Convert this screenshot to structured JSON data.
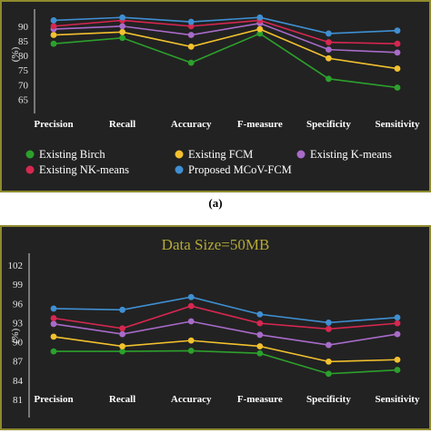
{
  "caption_a": "(a)",
  "chart_data": [
    {
      "type": "line",
      "title": "",
      "xlabel": "",
      "ylabel": "(%)",
      "ylim": [
        62,
        94
      ],
      "yticks": [
        65,
        70,
        75,
        80,
        85,
        90
      ],
      "categories": [
        "Precision",
        "Recall",
        "Accuracy",
        "F-measure",
        "Specificity",
        "Sensitivity"
      ],
      "series": [
        {
          "name": "Existing Birch",
          "color": "#2ca02c",
          "values": [
            84,
            86,
            77.5,
            87.5,
            72,
            69
          ]
        },
        {
          "name": "Existing FCM",
          "color": "#f2c12e",
          "values": [
            87,
            88,
            83,
            89,
            79,
            75.5
          ]
        },
        {
          "name": "Existing K-means",
          "color": "#a86bc9",
          "values": [
            89,
            90,
            87,
            91,
            82,
            81
          ]
        },
        {
          "name": "Existing NK-means",
          "color": "#d62750",
          "values": [
            90,
            92,
            90,
            92,
            84.5,
            84
          ]
        },
        {
          "name": "Proposed MCoV-FCM",
          "color": "#3f8fd2",
          "values": [
            92,
            93,
            91.5,
            93,
            87.5,
            88.5
          ]
        }
      ],
      "legend_position": "bottom"
    },
    {
      "type": "line",
      "title": "Data Size=50MB",
      "xlabel": "",
      "ylabel": "(%)",
      "ylim": [
        79,
        103
      ],
      "yticks": [
        81,
        84,
        87,
        90,
        93,
        96,
        99,
        102
      ],
      "categories": [
        "Precision",
        "Recall",
        "Accuracy",
        "F-measure",
        "Specificity",
        "Sensitivity"
      ],
      "series": [
        {
          "name": "Existing Birch",
          "color": "#2ca02c",
          "values": [
            88.5,
            88.5,
            88.6,
            88.2,
            85,
            85.6
          ]
        },
        {
          "name": "Existing FCM",
          "color": "#f2c12e",
          "values": [
            90.8,
            89.3,
            90.2,
            89.3,
            86.9,
            87.2
          ]
        },
        {
          "name": "Existing K-means",
          "color": "#a86bc9",
          "values": [
            92.8,
            91.2,
            93.2,
            91.1,
            89.5,
            91.2
          ]
        },
        {
          "name": "Existing NK-means",
          "color": "#d62750",
          "values": [
            93.7,
            92.1,
            95.6,
            92.9,
            92,
            92.9
          ]
        },
        {
          "name": "Proposed MCoV-FCM",
          "color": "#3f8fd2",
          "values": [
            95.2,
            95,
            97,
            94.3,
            93,
            93.8
          ]
        }
      ]
    }
  ]
}
